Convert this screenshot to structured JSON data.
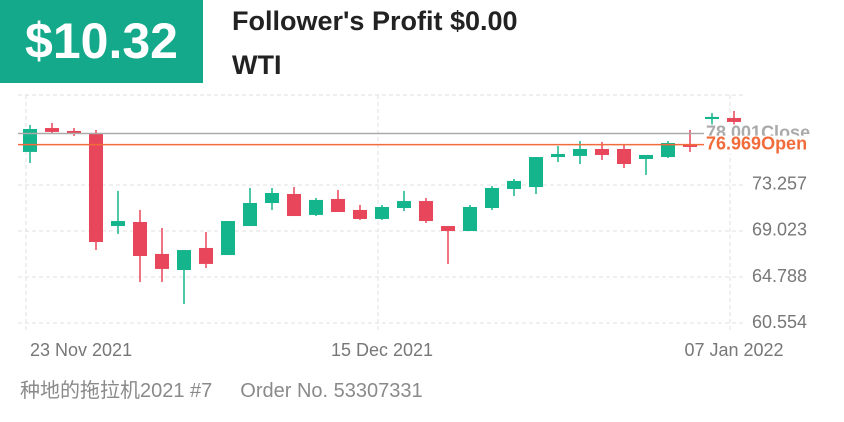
{
  "header": {
    "amount": "$10.32",
    "profit_label": "Follower's Profit $0.00",
    "symbol": "WTI"
  },
  "chart_data": {
    "type": "candlestick",
    "categories": [
      "23 Nov 2021",
      null,
      null,
      null,
      null,
      null,
      null,
      null,
      null,
      null,
      null,
      null,
      null,
      null,
      null,
      null,
      "15 Dec 2021",
      null,
      null,
      null,
      null,
      null,
      null,
      null,
      null,
      null,
      null,
      null,
      null,
      null,
      null,
      null,
      "07 Jan 2022"
    ],
    "open": [
      76.3,
      78.5,
      78.23,
      78.04,
      69.48,
      69.85,
      66.91,
      65.43,
      67.46,
      66.81,
      69.48,
      71.6,
      72.43,
      70.5,
      71.97,
      70.96,
      70.13,
      71.14,
      71.78,
      69.48,
      69.02,
      71.14,
      72.89,
      73.07,
      75.83,
      75.93,
      76.57,
      76.57,
      75.65,
      75.83,
      76.94,
      79.33,
      79.42
    ],
    "high": [
      78.78,
      78.96,
      78.5,
      78.32,
      72.71,
      70.96,
      69.3,
      67.27,
      68.93,
      69.94,
      72.98,
      72.98,
      73.07,
      72.06,
      72.8,
      71.42,
      71.42,
      72.71,
      72.06,
      69.48,
      71.42,
      73.17,
      73.81,
      75.83,
      76.85,
      77.31,
      77.22,
      76.94,
      76.02,
      77.31,
      78.32,
      79.88,
      80.07
    ],
    "low": [
      75.28,
      77.95,
      77.77,
      67.27,
      68.75,
      64.33,
      64.33,
      62.3,
      65.62,
      66.81,
      69.48,
      70.96,
      70.4,
      70.4,
      70.77,
      70.04,
      70.04,
      70.86,
      69.76,
      65.99,
      69.02,
      70.96,
      72.24,
      72.43,
      75.37,
      75.19,
      75.56,
      74.82,
      74.18,
      75.74,
      76.3,
      76.66,
      78.32
    ],
    "close": [
      78.41,
      78.14,
      78.04,
      68.01,
      69.94,
      66.72,
      65.53,
      67.27,
      65.99,
      69.94,
      71.6,
      72.52,
      70.4,
      71.88,
      70.77,
      70.13,
      71.23,
      71.78,
      69.94,
      69.02,
      71.23,
      72.98,
      73.63,
      75.83,
      76.11,
      76.57,
      76.02,
      75.19,
      76.02,
      77.12,
      76.76,
      79.52,
      79.06
    ],
    "up_color": "#14b48c",
    "down_color": "#e8465a",
    "ylim": [
      60.554,
      81.54
    ],
    "yticks": [
      60.554,
      64.788,
      69.023,
      73.257
    ],
    "grid": true,
    "reference_lines": [
      {
        "name": "Close",
        "value": 78.001,
        "color": "#aaaaaa"
      },
      {
        "name": "Open",
        "value": 76.969,
        "color": "#f26b3a"
      }
    ]
  },
  "footer": {
    "account": "种地的拖拉机2021 #7",
    "order": "Order No. 53307331"
  }
}
